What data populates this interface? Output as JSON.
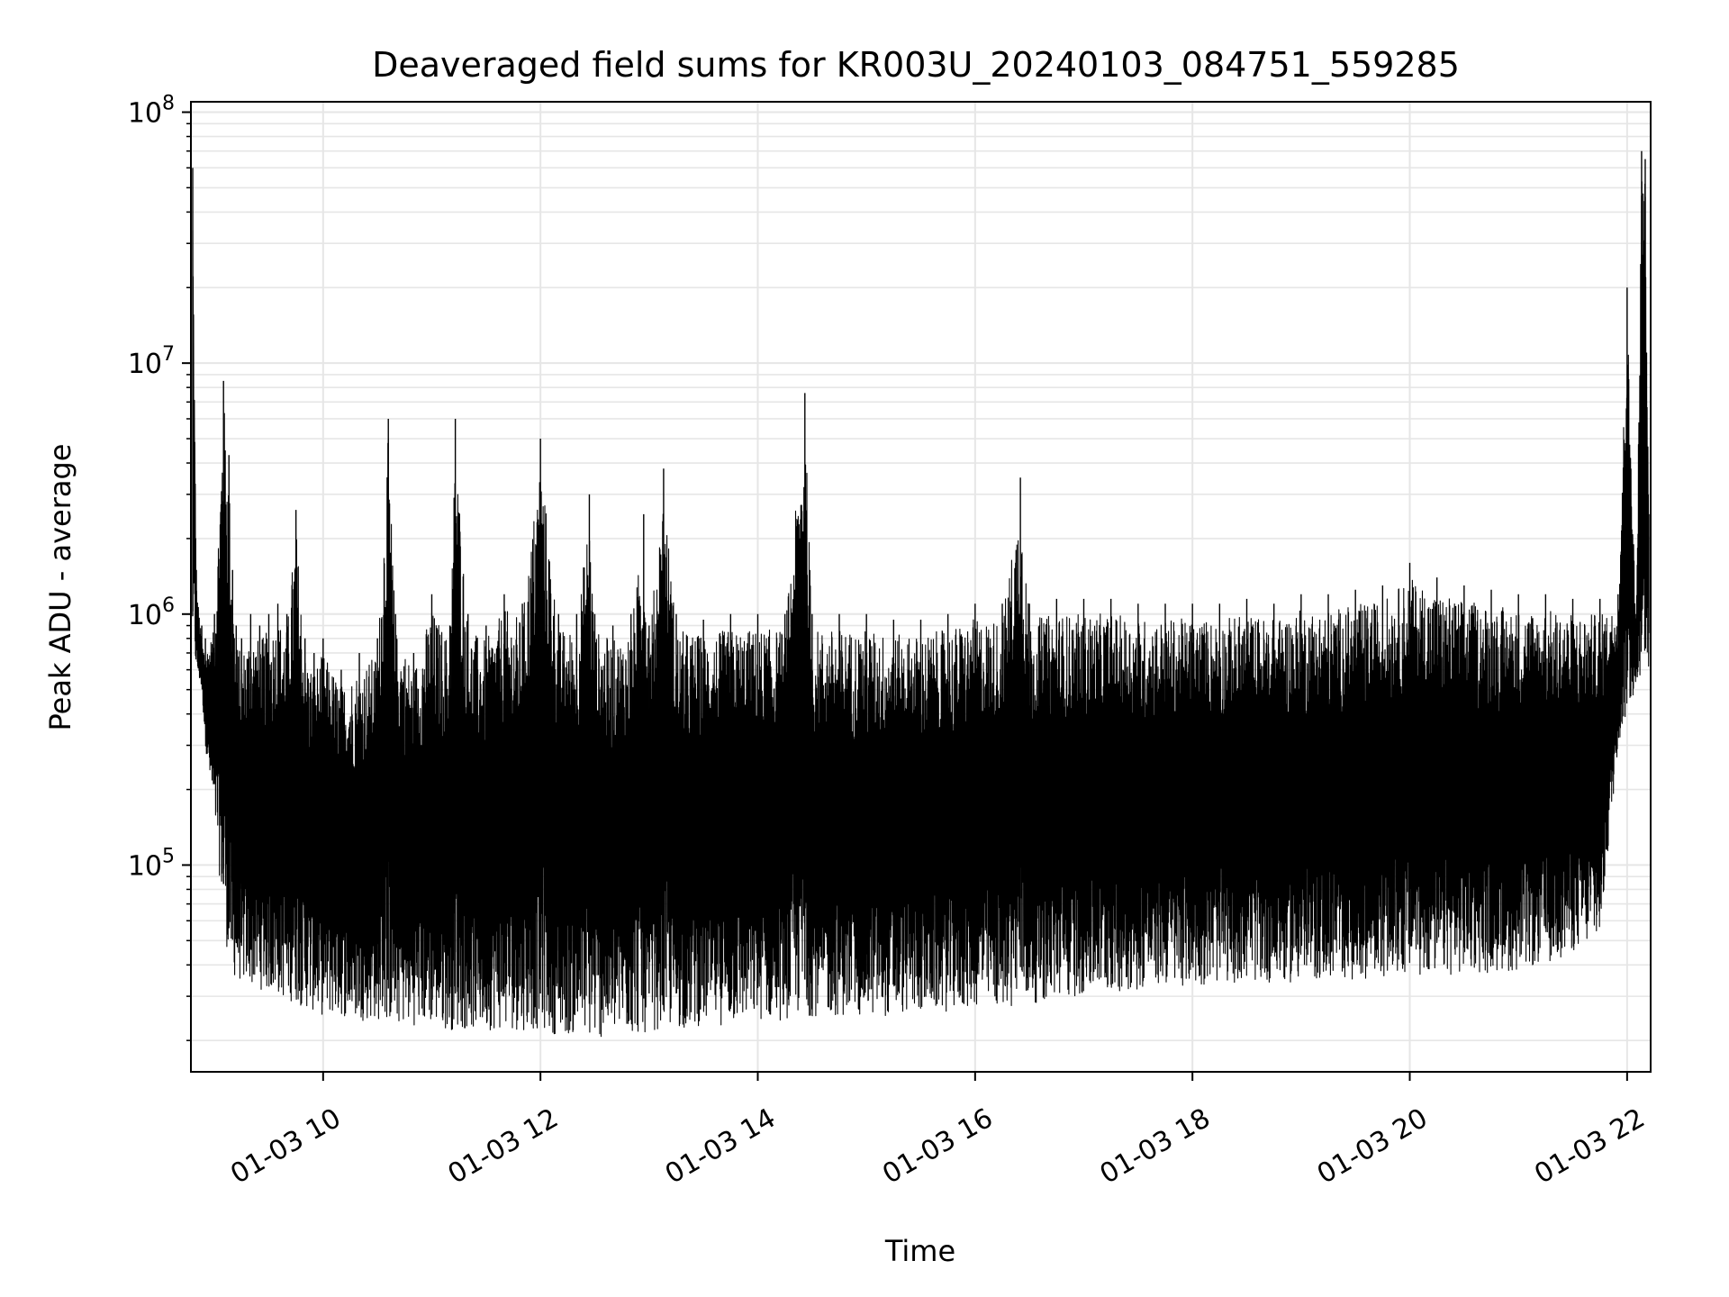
{
  "chart_data": {
    "type": "line",
    "title": "Deaveraged field sums for KR003U_20240103_084751_559285",
    "xlabel": "Time",
    "ylabel": "Peak ADU - average",
    "yscale": "log",
    "ylim": [
      15000,
      110000000
    ],
    "xlim": [
      "01-03 08:47",
      "01-03 22:13"
    ],
    "grid": true,
    "line_color": "#000000",
    "x_ticks": [
      {
        "value": "01-03 10:00",
        "label": "01-03 10"
      },
      {
        "value": "01-03 12:00",
        "label": "01-03 12"
      },
      {
        "value": "01-03 14:00",
        "label": "01-03 14"
      },
      {
        "value": "01-03 16:00",
        "label": "01-03 16"
      },
      {
        "value": "01-03 18:00",
        "label": "01-03 18"
      },
      {
        "value": "01-03 20:00",
        "label": "01-03 20"
      },
      {
        "value": "01-03 22:00",
        "label": "01-03 22"
      }
    ],
    "y_ticks": [
      {
        "value": 100000,
        "base": "10",
        "exp": "5"
      },
      {
        "value": 1000000,
        "base": "10",
        "exp": "6"
      },
      {
        "value": 10000000,
        "base": "10",
        "exp": "7"
      },
      {
        "value": 100000000,
        "base": "10",
        "exp": "8"
      }
    ],
    "series": [
      {
        "x": [
          "01-03 08:48",
          "01-03 08:50",
          "01-03 08:53",
          "01-03 08:55",
          "01-03 09:00",
          "01-03 09:05",
          "01-03 09:08",
          "01-03 09:10",
          "01-03 09:12",
          "01-03 09:15",
          "01-03 09:20",
          "01-03 09:25",
          "01-03 09:30",
          "01-03 09:35",
          "01-03 09:40",
          "01-03 09:45",
          "01-03 09:50",
          "01-03 09:55",
          "01-03 10:00",
          "01-03 10:10",
          "01-03 10:20",
          "01-03 10:30",
          "01-03 10:36",
          "01-03 10:40",
          "01-03 10:50",
          "01-03 11:00",
          "01-03 11:10",
          "01-03 11:13",
          "01-03 11:20",
          "01-03 11:30",
          "01-03 11:40",
          "01-03 11:50",
          "01-03 12:00",
          "01-03 12:10",
          "01-03 12:20",
          "01-03 12:27",
          "01-03 12:30",
          "01-03 12:40",
          "01-03 12:50",
          "01-03 12:57",
          "01-03 13:00",
          "01-03 13:08",
          "01-03 13:15",
          "01-03 13:30",
          "01-03 13:45",
          "01-03 14:00",
          "01-03 14:15",
          "01-03 14:26",
          "01-03 14:30",
          "01-03 14:45",
          "01-03 15:00",
          "01-03 15:15",
          "01-03 15:30",
          "01-03 15:45",
          "01-03 16:00",
          "01-03 16:15",
          "01-03 16:25",
          "01-03 16:30",
          "01-03 16:45",
          "01-03 17:00",
          "01-03 17:15",
          "01-03 17:30",
          "01-03 17:45",
          "01-03 18:00",
          "01-03 18:15",
          "01-03 18:30",
          "01-03 18:45",
          "01-03 19:00",
          "01-03 19:15",
          "01-03 19:30",
          "01-03 19:45",
          "01-03 20:00",
          "01-03 20:15",
          "01-03 20:30",
          "01-03 20:45",
          "01-03 21:00",
          "01-03 21:15",
          "01-03 21:30",
          "01-03 21:45",
          "01-03 21:55",
          "01-03 22:00",
          "01-03 22:05",
          "01-03 22:08",
          "01-03 22:10",
          "01-03 22:12"
        ],
        "peaks": [
          60000000,
          1500000,
          900000,
          800000,
          1000000,
          8500000,
          4300000,
          1500000,
          900000,
          800000,
          1000000,
          900000,
          1000000,
          1100000,
          1000000,
          2600000,
          800000,
          700000,
          800000,
          600000,
          700000,
          800000,
          6000000,
          1000000,
          700000,
          1200000,
          900000,
          6000000,
          1000000,
          900000,
          1200000,
          1100000,
          5000000,
          1000000,
          1000000,
          3000000,
          1000000,
          900000,
          1000000,
          2500000,
          900000,
          3800000,
          1000000,
          950000,
          1000000,
          1000000,
          1000000,
          7600000,
          1000000,
          1000000,
          1000000,
          950000,
          950000,
          1000000,
          1100000,
          1100000,
          3500000,
          1100000,
          1150000,
          1150000,
          1150000,
          1100000,
          1100000,
          1100000,
          1100000,
          1150000,
          1100000,
          1200000,
          1200000,
          1250000,
          1300000,
          1600000,
          1400000,
          1300000,
          1250000,
          1200000,
          1200000,
          1150000,
          1150000,
          1200000,
          20000000,
          1000000,
          70000000,
          65000000,
          2500000
        ],
        "lows": [
          700000,
          600000,
          500000,
          300000,
          150000,
          60000,
          40000,
          36000,
          35000,
          34000,
          33000,
          32000,
          31000,
          30000,
          29000,
          28000,
          27000,
          26000,
          25000,
          25000,
          24000,
          24000,
          23000,
          23000,
          23000,
          23000,
          22000,
          22000,
          22000,
          22000,
          22000,
          22000,
          22000,
          21000,
          21000,
          20000,
          20000,
          21000,
          21000,
          21000,
          22000,
          22000,
          22000,
          23000,
          23000,
          24000,
          24000,
          25000,
          25000,
          25000,
          25000,
          25000,
          26000,
          26000,
          27000,
          27000,
          28000,
          28000,
          29000,
          30000,
          31000,
          32000,
          33000,
          33000,
          34000,
          34000,
          34000,
          34000,
          35000,
          35000,
          36000,
          36000,
          36000,
          37000,
          37000,
          38000,
          40000,
          45000,
          50000,
          300000,
          400000,
          500000,
          600000,
          600000,
          600000
        ]
      }
    ]
  }
}
